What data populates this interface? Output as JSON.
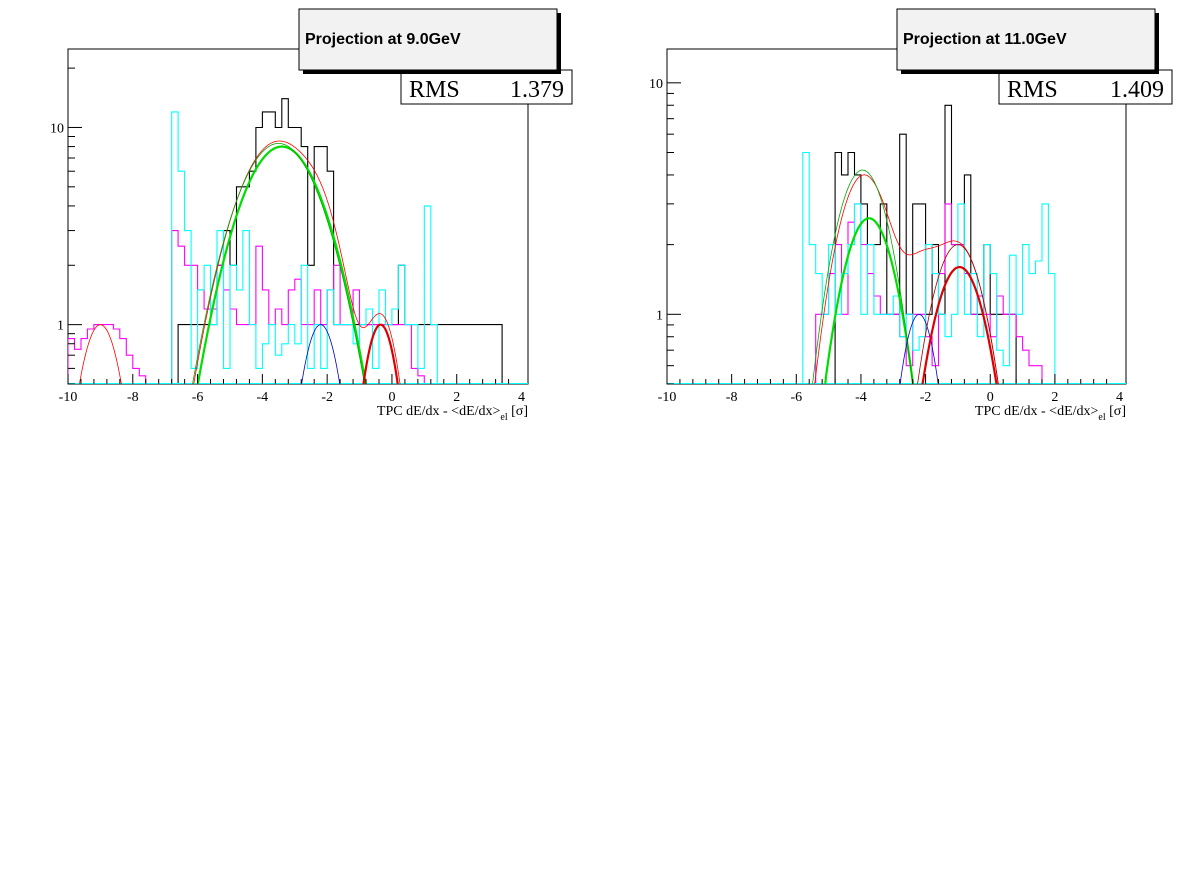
{
  "chart_data": [
    {
      "type": "histogram",
      "title": "Projection at 9.0GeV",
      "xlabel_main": "TPC dE/dx - <dE/dx>",
      "xlabel_sub": "el",
      "xlabel_unit": "[σ]",
      "xlim": [
        -10,
        4.2
      ],
      "ylim": [
        0.5,
        25
      ],
      "yscale": "log",
      "xticks": [
        "-10",
        "-8",
        "-6",
        "-4",
        "-2",
        "0",
        "2",
        "4"
      ],
      "yticks": [
        "1",
        "10"
      ],
      "stats": [
        {
          "label": "RMS",
          "value": "1.379"
        }
      ],
      "bin_width": 0.2,
      "series": [
        {
          "color": "#000000",
          "kind": "hist",
          "x_start": -6.8,
          "values": [
            0,
            1,
            1,
            1,
            1,
            1,
            1,
            2,
            3,
            2,
            5,
            5,
            6,
            10,
            12,
            12,
            10,
            14,
            10,
            10,
            8,
            2,
            8,
            8,
            6,
            1,
            1,
            1,
            1,
            1,
            1,
            1,
            1,
            1,
            1,
            2,
            1,
            1,
            1,
            1,
            1,
            1,
            1,
            1,
            1,
            1,
            1,
            1,
            1,
            1,
            1
          ]
        },
        {
          "color": "#ff00ff",
          "kind": "hist",
          "x_start": -10,
          "values": [
            0.85,
            0.75,
            0.85,
            0.95,
            1,
            1,
            1,
            0.95,
            0.85,
            0.7,
            0.6,
            0.55,
            0,
            0,
            0,
            0,
            3,
            2.5,
            2,
            2,
            1.5,
            1.2,
            1.2,
            2,
            1.5,
            1.2,
            1,
            1,
            1,
            2.5,
            1.5,
            1,
            1.2,
            1,
            1.5,
            1.7,
            1,
            1,
            1.5,
            1,
            1.5,
            2,
            1,
            1,
            1.5,
            1,
            1,
            1,
            1,
            1,
            1,
            1,
            1,
            0.6,
            0.55
          ]
        },
        {
          "color": "#00ffff",
          "kind": "hist",
          "x_start": -6.8,
          "values": [
            12,
            6,
            3,
            0.6,
            1.5,
            2,
            1,
            3,
            0.6,
            2,
            1.5,
            3,
            1,
            0.6,
            0.8,
            1,
            0.7,
            0.8,
            1,
            0.8,
            2,
            0.6,
            1,
            0.6,
            1.5,
            1,
            1,
            1,
            0.8,
            1,
            1.2,
            0.6,
            1.5,
            1,
            1.2,
            2,
            1,
            1,
            0.6,
            4,
            1
          ]
        }
      ],
      "curves": [
        {
          "color": "#ff0000",
          "width": 0.8,
          "kind": "sum",
          "components": [
            [
              1.0,
              -9.0,
              0.55
            ],
            [
              8.5,
              -3.5,
              1.1
            ],
            [
              1.0,
              -2.2,
              0.5
            ],
            [
              1.0,
              -0.3,
              0.45
            ]
          ]
        },
        {
          "color": "#00dd00",
          "width": 2.2,
          "kind": "gauss",
          "components": [
            [
              8.0,
              -3.4,
              1.1
            ]
          ]
        },
        {
          "color": "#00aa00",
          "width": 0.8,
          "kind": "gauss",
          "components": [
            [
              8.3,
              -3.5,
              1.12
            ]
          ]
        },
        {
          "color": "#0000cc",
          "width": 0.8,
          "kind": "gauss",
          "components": [
            [
              1.0,
              -2.2,
              0.5
            ]
          ]
        },
        {
          "color": "#dd0000",
          "width": 2.2,
          "kind": "gauss",
          "components": [
            [
              1.0,
              -0.35,
              0.45
            ]
          ]
        }
      ]
    },
    {
      "type": "histogram",
      "title": "Projection at 11.0GeV",
      "xlabel_main": "TPC dE/dx - <dE/dx>",
      "xlabel_sub": "el",
      "xlabel_unit": "[σ]",
      "xlim": [
        -10,
        4.2
      ],
      "ylim": [
        0.5,
        14
      ],
      "yscale": "log",
      "xticks": [
        "-10",
        "-8",
        "-6",
        "-4",
        "-2",
        "0",
        "2",
        "4"
      ],
      "yticks": [
        "1",
        "10"
      ],
      "stats": [
        {
          "label": "RMS",
          "value": "1.409"
        }
      ],
      "bin_width": 0.2,
      "series": [
        {
          "color": "#000000",
          "kind": "hist",
          "x_start": -4.8,
          "values": [
            5,
            4,
            5,
            4,
            3,
            2,
            2,
            3,
            1,
            1,
            6,
            1,
            3,
            3,
            1,
            2,
            1,
            8,
            2,
            2,
            4,
            1,
            1,
            2,
            1,
            1,
            1,
            1
          ]
        },
        {
          "color": "#ff00ff",
          "kind": "hist",
          "x_start": -5.4,
          "values": [
            1,
            1,
            1.5,
            2,
            1,
            2.5,
            3,
            2,
            1.5,
            1.2,
            1,
            1,
            1,
            0.8,
            0.6,
            1,
            1,
            0.8,
            0.6,
            1.5,
            3,
            2,
            2,
            1.5,
            1,
            1.2,
            1,
            0.8,
            1.2,
            1,
            1,
            0.8,
            0.7,
            0.6,
            0.6
          ]
        },
        {
          "color": "#00ffff",
          "kind": "hist",
          "x_start": -5.8,
          "values": [
            5,
            2,
            1.5,
            1,
            2,
            1,
            1.5,
            2,
            3,
            1,
            2,
            1,
            1,
            1,
            1.2,
            0.8,
            1,
            0.7,
            0.8,
            2,
            1.5,
            1,
            0.8,
            1,
            3,
            1,
            1.5,
            0.8,
            2,
            1.5,
            0.7,
            0.6,
            1.8,
            1,
            2,
            1.5,
            1.7,
            3,
            1.5
          ]
        }
      ],
      "curves": [
        {
          "color": "#ff0000",
          "width": 0.8,
          "kind": "sum",
          "components": [
            [
              4.0,
              -3.9,
              0.75
            ],
            [
              1.0,
              -2.2,
              0.5
            ],
            [
              2.0,
              -1.0,
              0.75
            ]
          ]
        },
        {
          "color": "#00dd00",
          "width": 2.2,
          "kind": "gauss",
          "components": [
            [
              2.6,
              -3.75,
              0.75
            ]
          ]
        },
        {
          "color": "#00aa00",
          "width": 0.8,
          "kind": "gauss",
          "components": [
            [
              4.2,
              -3.95,
              0.75
            ]
          ]
        },
        {
          "color": "#0000cc",
          "width": 0.8,
          "kind": "gauss",
          "components": [
            [
              1.0,
              -2.2,
              0.5
            ]
          ]
        },
        {
          "color": "#dd0000",
          "width": 2.2,
          "kind": "gauss",
          "components": [
            [
              1.6,
              -0.95,
              0.75
            ]
          ]
        },
        {
          "color": "#aa0000",
          "width": 0.8,
          "kind": "gauss",
          "components": [
            [
              2.0,
              -1.0,
              0.75
            ]
          ]
        }
      ]
    }
  ]
}
